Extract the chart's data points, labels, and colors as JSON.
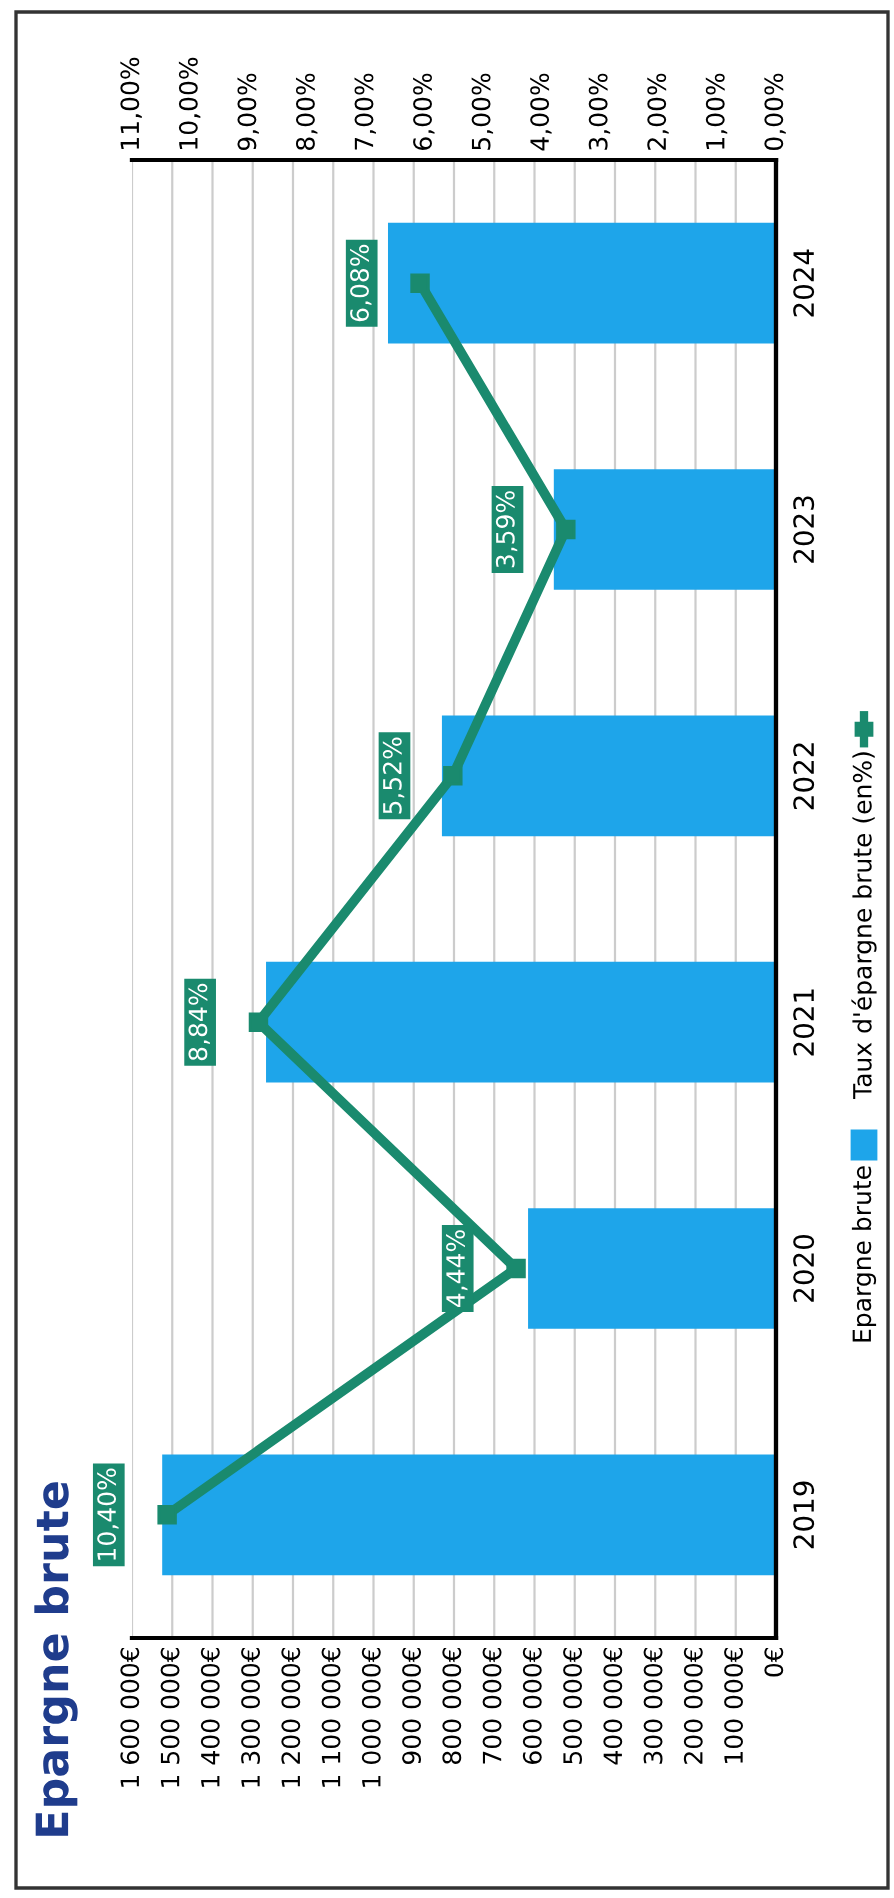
{
  "chart_data": {
    "type": "bar",
    "orientation": "horizontal",
    "title": "Epargne brute",
    "categories": [
      "2024",
      "2023",
      "2022",
      "2021",
      "2020",
      "2019"
    ],
    "series": [
      {
        "name": "Epargne brute",
        "color": "#1ea5ea",
        "values": [
          964000,
          552000,
          830000,
          1267000,
          616000,
          1525000
        ]
      },
      {
        "name": "Taux d'épargne brute (en%)",
        "type": "line",
        "axis": "x2",
        "color": "#1a8a6e",
        "marker": "square",
        "values": [
          6.08,
          3.59,
          5.52,
          8.84,
          4.44,
          10.4
        ],
        "value_labels": [
          "6,08%",
          "3,59%",
          "5,52%",
          "8,84%",
          "4,44%",
          "10,40%"
        ]
      }
    ],
    "xlim": [
      1600000,
      0
    ],
    "xticks": [
      {
        "value": 0,
        "label": "0€"
      },
      {
        "value": 100000,
        "label": "100 000€"
      },
      {
        "value": 200000,
        "label": "200 000€"
      },
      {
        "value": 300000,
        "label": "300 000€"
      },
      {
        "value": 400000,
        "label": "400 000€"
      },
      {
        "value": 500000,
        "label": "500 000€"
      },
      {
        "value": 600000,
        "label": "600 000€"
      },
      {
        "value": 700000,
        "label": "700 000€"
      },
      {
        "value": 800000,
        "label": "800 000€"
      },
      {
        "value": 900000,
        "label": "900 000€"
      },
      {
        "value": 1000000,
        "label": "1 000 000€"
      },
      {
        "value": 1100000,
        "label": "1 100 000€"
      },
      {
        "value": 1200000,
        "label": "1 200 000€"
      },
      {
        "value": 1300000,
        "label": "1 300 000€"
      },
      {
        "value": 1400000,
        "label": "1 400 000€"
      },
      {
        "value": 1500000,
        "label": "1 500 000€"
      },
      {
        "value": 1600000,
        "label": "1 600 000€"
      }
    ],
    "x2lim": [
      11,
      0
    ],
    "x2ticks": [
      {
        "value": 0,
        "label": "0,00%"
      },
      {
        "value": 1,
        "label": "1,00%"
      },
      {
        "value": 2,
        "label": "2,00%"
      },
      {
        "value": 3,
        "label": "3,00%"
      },
      {
        "value": 4,
        "label": "4,00%"
      },
      {
        "value": 5,
        "label": "5,00%"
      },
      {
        "value": 6,
        "label": "6,00%"
      },
      {
        "value": 7,
        "label": "7,00%"
      },
      {
        "value": 8,
        "label": "8,00%"
      },
      {
        "value": 9,
        "label": "9,00%"
      },
      {
        "value": 10,
        "label": "10,00%"
      },
      {
        "value": 11,
        "label": "11,00%"
      }
    ],
    "grid": "x",
    "legend": "right"
  }
}
